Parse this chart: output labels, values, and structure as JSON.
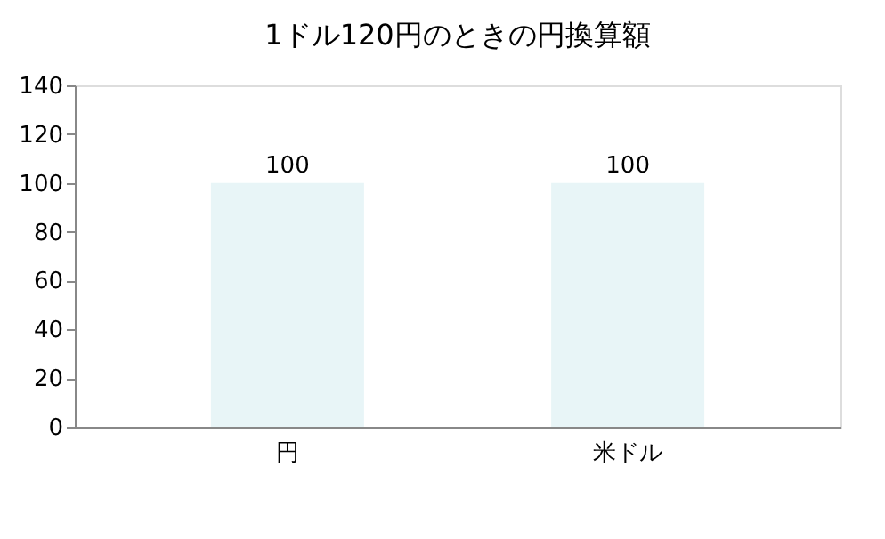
{
  "chart_data": {
    "type": "bar",
    "title": "1ドル120円のときの円換算額",
    "categories": [
      "円",
      "米ドル"
    ],
    "values": [
      100,
      100
    ],
    "color": "#e8f5f7",
    "ylim": [
      0,
      140
    ],
    "yticks": [
      0,
      20,
      40,
      60,
      80,
      100,
      120,
      140
    ],
    "data_labels": true,
    "grid": false
  }
}
